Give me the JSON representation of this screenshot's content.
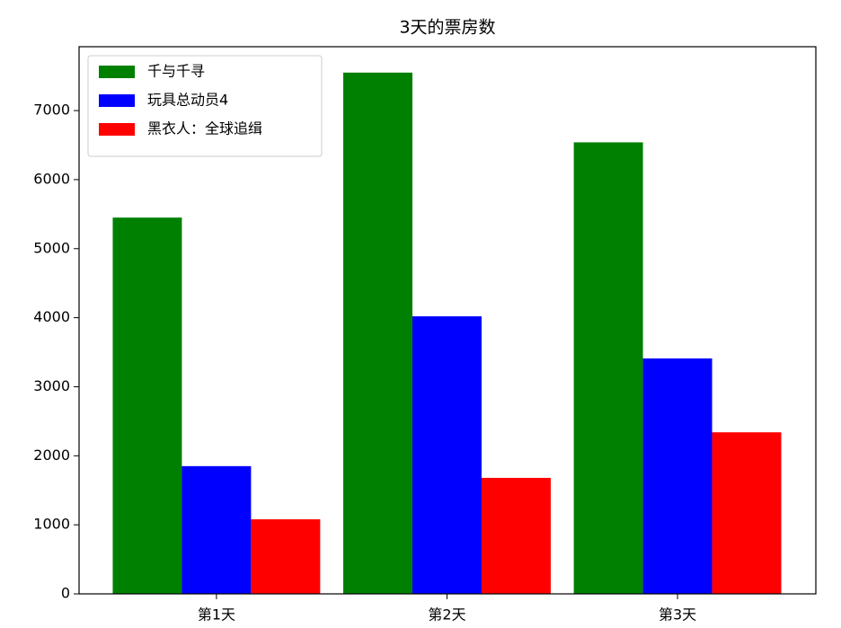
{
  "chart_data": {
    "type": "bar",
    "title": "3天的票房数",
    "categories": [
      "第1天",
      "第2天",
      "第3天"
    ],
    "series": [
      {
        "name": "千与千寻",
        "color": "#008000",
        "values": [
          5450,
          7550,
          6540
        ]
      },
      {
        "name": "玩具总动员4",
        "color": "#0000ff",
        "values": [
          1850,
          4020,
          3410
        ]
      },
      {
        "name": "黑衣人：全球追缉",
        "color": "#ff0000",
        "values": [
          1080,
          1680,
          2340
        ]
      }
    ],
    "ylim": [
      0,
      7925
    ],
    "yticks": [
      0,
      1000,
      2000,
      3000,
      4000,
      5000,
      6000,
      7000
    ],
    "legend": "upper left",
    "grid": false
  }
}
